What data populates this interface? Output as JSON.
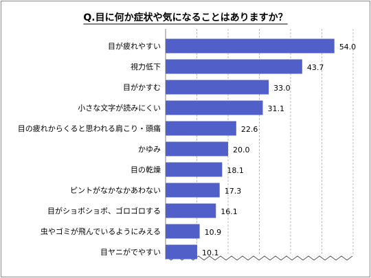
{
  "chart_data": {
    "type": "bar",
    "orientation": "horizontal",
    "title": "Q.目に何か症状や気になることはありますか？",
    "xlabel": "",
    "ylabel": "",
    "xlim": [
      0,
      60
    ],
    "grid": true,
    "categories": [
      "目が疲れやすい",
      "視力低下",
      "目がかすむ",
      "小さな文字が読みにくい",
      "目の疲れからくると思われる肩こり・頭痛",
      "かゆみ",
      "目の乾燥",
      "ピントがなかなかあわない",
      "目がショボショボ、ゴロゴロする",
      "虫やゴミが飛んでいるようにみえる",
      "目ヤニがでやすい"
    ],
    "values": [
      54.0,
      43.7,
      33.0,
      31.1,
      22.6,
      20.0,
      18.1,
      17.3,
      16.1,
      10.9,
      10.1
    ],
    "value_labels": [
      "54.0",
      "43.7",
      "33.0",
      "31.1",
      "22.6",
      "20.0",
      "18.1",
      "17.3",
      "16.1",
      "10.9",
      "10.1"
    ],
    "colors": {
      "bar": "#5060c8",
      "grid": "#bdbdbd",
      "axis": "#808080",
      "frame": "#8a8a8a"
    }
  }
}
